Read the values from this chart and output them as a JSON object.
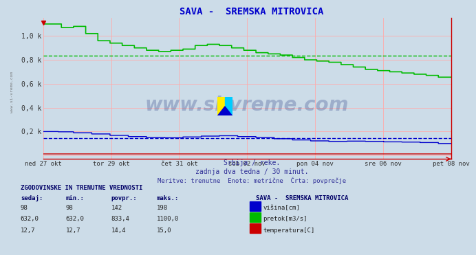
{
  "title": "SAVA -  SREMSKA MITROVICA",
  "title_color": "#0000cc",
  "bg_color": "#ccdce8",
  "plot_bg_color": "#ccdce8",
  "grid_color_h": "#ffaaaa",
  "grid_color_v": "#ffaaaa",
  "xlabel_dates": [
    "ned 27 okt",
    "tor 29 okt",
    "čet 31 okt",
    "sob 02 nov",
    "pon 04 nov",
    "sre 06 nov",
    "pet 08 nov"
  ],
  "ytick_labels": [
    "",
    "0,2 k",
    "0,4 k",
    "0,6 k",
    "0,8 k",
    "1,0 k"
  ],
  "ytick_values": [
    0,
    200,
    400,
    600,
    800,
    1000
  ],
  "ymax": 1150,
  "ymin": -30,
  "subtitle1": "Srbija / reke.",
  "subtitle2": "zadnja dva tedna / 30 minut.",
  "subtitle3": "Meritve: trenutne  Enote: metrične  Črta: povprečje",
  "watermark": "www.si-vreme.com",
  "watermark_color": "#334488",
  "watermark_alpha": 0.3,
  "sidebar_text": "www.si-vreme.com",
  "avg_green": 833.4,
  "avg_blue": 142,
  "green_color": "#00bb00",
  "blue_color": "#0000cc",
  "red_color": "#cc0000",
  "n_points": 672,
  "table_title": "ZGODOVINSKE IN TRENUTNE VREDNOSTI",
  "col_headers": [
    "sedaj:",
    "min.:",
    "povpr.:",
    "maks.:"
  ],
  "row1": [
    "98",
    "98",
    "142",
    "198"
  ],
  "row2": [
    "632,0",
    "632,0",
    "833,4",
    "1100,0"
  ],
  "row3": [
    "12,7",
    "12,7",
    "14,4",
    "15,0"
  ],
  "legend_labels": [
    "višina[cm]",
    "pretok[m3/s]",
    "temperatura[C]"
  ],
  "legend_colors": [
    "#0000cc",
    "#00bb00",
    "#cc0000"
  ]
}
